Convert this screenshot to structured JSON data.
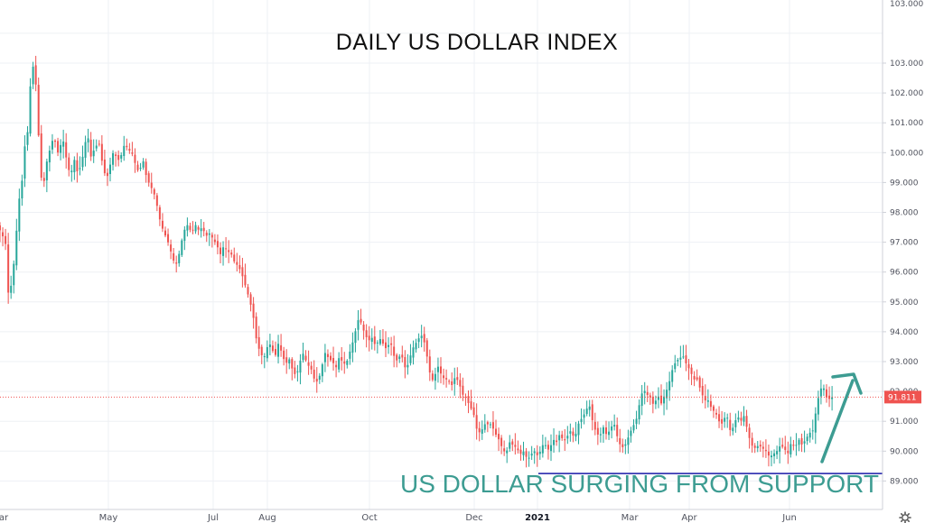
{
  "chart_data": {
    "type": "candlestick",
    "title": "DAILY US DOLLAR INDEX",
    "annotation": "US DOLLAR SURGING FROM SUPPORT",
    "y_axis": {
      "position": "right",
      "ylim": [
        88.35,
        103.15
      ],
      "ticks": [
        "103.000",
        "102.000",
        "101.000",
        "100.000",
        "99.000",
        "98.000",
        "97.000",
        "96.000",
        "95.000",
        "94.000",
        "93.000",
        "92.000",
        "91.000",
        "90.000",
        "89.000"
      ],
      "partial_top_tick": "103.000"
    },
    "x_axis": {
      "labels": [
        "ar",
        "May",
        "Jul",
        "Aug",
        "Oct",
        "Dec",
        "2021",
        "Mar",
        "Apr",
        "Jun"
      ],
      "bold_labels": [
        "2021"
      ]
    },
    "last_price": {
      "value": 91.811,
      "label": "91.811"
    },
    "support_level": 89.25,
    "colors": {
      "up": "#26a69a",
      "down": "#ef5350",
      "support_line": "#1a1aa8",
      "annotation": "#3d9c92",
      "price_tag": "#ef5350"
    },
    "grid": true,
    "anchors": [
      [
        0,
        97.4
      ],
      [
        6,
        97.0
      ],
      [
        9,
        95.3
      ],
      [
        13,
        95.6
      ],
      [
        17,
        96.8
      ],
      [
        21,
        98.6
      ],
      [
        23,
        97.8
      ],
      [
        26,
        100.5
      ],
      [
        29,
        99.9
      ],
      [
        33,
        102.0
      ],
      [
        35,
        102.8
      ],
      [
        37,
        102.9
      ],
      [
        40,
        102.2
      ],
      [
        43,
        100.4
      ],
      [
        47,
        98.6
      ],
      [
        51,
        99.6
      ],
      [
        56,
        100.2
      ],
      [
        60,
        100.6
      ],
      [
        63,
        99.9
      ],
      [
        66,
        100.2
      ],
      [
        70,
        100.4
      ],
      [
        74,
        99.7
      ],
      [
        78,
        99.2
      ],
      [
        82,
        99.8
      ],
      [
        86,
        99.3
      ],
      [
        90,
        99.6
      ],
      [
        94,
        100.3
      ],
      [
        97,
        100.6
      ],
      [
        101,
        99.8
      ],
      [
        105,
        100.2
      ],
      [
        110,
        100.3
      ],
      [
        114,
        99.5
      ],
      [
        118,
        99.1
      ],
      [
        122,
        99.6
      ],
      [
        126,
        100.1
      ],
      [
        130,
        99.7
      ],
      [
        134,
        99.9
      ],
      [
        138,
        100.3
      ],
      [
        142,
        100.1
      ],
      [
        146,
        100.0
      ],
      [
        150,
        99.6
      ],
      [
        154,
        99.3
      ],
      [
        158,
        99.8
      ],
      [
        162,
        99.2
      ],
      [
        166,
        98.9
      ],
      [
        170,
        98.7
      ],
      [
        174,
        98.2
      ],
      [
        178,
        97.6
      ],
      [
        182,
        97.3
      ],
      [
        186,
        97.0
      ],
      [
        190,
        96.6
      ],
      [
        194,
        96.2
      ],
      [
        197,
        96.4
      ],
      [
        200,
        96.9
      ],
      [
        204,
        97.4
      ],
      [
        208,
        97.6
      ],
      [
        212,
        97.3
      ],
      [
        216,
        97.6
      ],
      [
        220,
        97.4
      ],
      [
        224,
        97.5
      ],
      [
        228,
        97.2
      ],
      [
        232,
        97.3
      ],
      [
        236,
        97.1
      ],
      [
        240,
        96.9
      ],
      [
        244,
        96.6
      ],
      [
        248,
        96.9
      ],
      [
        252,
        96.7
      ],
      [
        256,
        96.6
      ],
      [
        260,
        96.3
      ],
      [
        264,
        96.2
      ],
      [
        268,
        95.9
      ],
      [
        272,
        95.5
      ],
      [
        276,
        95.1
      ],
      [
        280,
        94.6
      ],
      [
        284,
        93.7
      ],
      [
        288,
        93.3
      ],
      [
        292,
        93.1
      ],
      [
        296,
        93.5
      ],
      [
        300,
        93.6
      ],
      [
        304,
        93.1
      ],
      [
        308,
        93.6
      ],
      [
        312,
        93.3
      ],
      [
        316,
        92.9
      ],
      [
        320,
        93.1
      ],
      [
        324,
        92.7
      ],
      [
        328,
        92.5
      ],
      [
        332,
        93.0
      ],
      [
        336,
        93.3
      ],
      [
        340,
        92.9
      ],
      [
        344,
        92.8
      ],
      [
        348,
        92.4
      ],
      [
        352,
        92.3
      ],
      [
        356,
        92.8
      ],
      [
        360,
        93.3
      ],
      [
        364,
        93.1
      ],
      [
        368,
        93.0
      ],
      [
        372,
        92.8
      ],
      [
        376,
        93.2
      ],
      [
        380,
        92.9
      ],
      [
        384,
        93.0
      ],
      [
        388,
        93.4
      ],
      [
        392,
        93.8
      ],
      [
        396,
        94.4
      ],
      [
        400,
        94.3
      ],
      [
        404,
        93.9
      ],
      [
        408,
        93.7
      ],
      [
        412,
        93.8
      ],
      [
        416,
        93.5
      ],
      [
        420,
        93.8
      ],
      [
        424,
        93.6
      ],
      [
        428,
        93.4
      ],
      [
        432,
        93.7
      ],
      [
        436,
        93.2
      ],
      [
        440,
        93.0
      ],
      [
        444,
        93.3
      ],
      [
        448,
        92.8
      ],
      [
        452,
        92.9
      ],
      [
        456,
        93.4
      ],
      [
        460,
        93.6
      ],
      [
        464,
        93.8
      ],
      [
        468,
        93.9
      ],
      [
        472,
        93.3
      ],
      [
        476,
        92.6
      ],
      [
        480,
        92.3
      ],
      [
        484,
        92.9
      ],
      [
        488,
        92.6
      ],
      [
        492,
        92.4
      ],
      [
        496,
        92.4
      ],
      [
        500,
        92.2
      ],
      [
        504,
        92.5
      ],
      [
        508,
        92.3
      ],
      [
        512,
        91.9
      ],
      [
        516,
        91.8
      ],
      [
        520,
        91.5
      ],
      [
        524,
        91.3
      ],
      [
        528,
        90.7
      ],
      [
        532,
        90.6
      ],
      [
        536,
        90.9
      ],
      [
        540,
        90.9
      ],
      [
        544,
        90.9
      ],
      [
        548,
        90.6
      ],
      [
        552,
        90.4
      ],
      [
        556,
        90.1
      ],
      [
        560,
        89.9
      ],
      [
        564,
        90.3
      ],
      [
        568,
        90.2
      ],
      [
        572,
        90.1
      ],
      [
        576,
        89.9
      ],
      [
        580,
        90.0
      ],
      [
        584,
        89.7
      ],
      [
        588,
        89.9
      ],
      [
        592,
        90.0
      ],
      [
        596,
        89.8
      ],
      [
        600,
        90.2
      ],
      [
        604,
        90.2
      ],
      [
        608,
        90.0
      ],
      [
        612,
        90.4
      ],
      [
        616,
        90.3
      ],
      [
        620,
        90.6
      ],
      [
        624,
        90.3
      ],
      [
        628,
        90.5
      ],
      [
        632,
        90.7
      ],
      [
        636,
        90.4
      ],
      [
        640,
        90.9
      ],
      [
        644,
        91.1
      ],
      [
        648,
        91.3
      ],
      [
        652,
        91.6
      ],
      [
        656,
        91.0
      ],
      [
        660,
        90.6
      ],
      [
        664,
        90.5
      ],
      [
        668,
        90.8
      ],
      [
        672,
        90.5
      ],
      [
        676,
        90.8
      ],
      [
        680,
        90.9
      ],
      [
        684,
        90.4
      ],
      [
        688,
        90.1
      ],
      [
        692,
        90.2
      ],
      [
        696,
        90.5
      ],
      [
        700,
        90.8
      ],
      [
        704,
        91.0
      ],
      [
        708,
        91.6
      ],
      [
        712,
        92.1
      ],
      [
        716,
        91.9
      ],
      [
        720,
        91.8
      ],
      [
        724,
        91.5
      ],
      [
        728,
        91.9
      ],
      [
        732,
        91.6
      ],
      [
        736,
        91.9
      ],
      [
        740,
        92.2
      ],
      [
        744,
        92.7
      ],
      [
        748,
        93.0
      ],
      [
        752,
        93.1
      ],
      [
        756,
        93.2
      ],
      [
        760,
        92.9
      ],
      [
        764,
        92.7
      ],
      [
        768,
        92.4
      ],
      [
        772,
        92.4
      ],
      [
        776,
        92.0
      ],
      [
        780,
        91.7
      ],
      [
        784,
        91.7
      ],
      [
        788,
        91.4
      ],
      [
        792,
        91.3
      ],
      [
        796,
        91.0
      ],
      [
        800,
        90.9
      ],
      [
        804,
        91.3
      ],
      [
        808,
        90.7
      ],
      [
        812,
        90.8
      ],
      [
        816,
        91.2
      ],
      [
        820,
        91.0
      ],
      [
        824,
        91.2
      ],
      [
        828,
        90.6
      ],
      [
        832,
        90.2
      ],
      [
        836,
        90.1
      ],
      [
        840,
        90.2
      ],
      [
        844,
        90.1
      ],
      [
        848,
        90.0
      ],
      [
        852,
        89.8
      ],
      [
        856,
        89.9
      ],
      [
        860,
        90.0
      ],
      [
        864,
        90.2
      ],
      [
        868,
        90.1
      ],
      [
        872,
        89.9
      ],
      [
        876,
        90.3
      ],
      [
        880,
        90.1
      ],
      [
        884,
        90.4
      ],
      [
        888,
        90.2
      ],
      [
        892,
        90.4
      ],
      [
        896,
        90.6
      ],
      [
        900,
        90.7
      ],
      [
        904,
        91.5
      ],
      [
        908,
        92.1
      ],
      [
        912,
        92.1
      ],
      [
        916,
        91.7
      ],
      [
        920,
        91.8
      ],
      [
        924,
        91.81
      ]
    ]
  },
  "footer": {
    "settings_icon": "gear-icon"
  }
}
